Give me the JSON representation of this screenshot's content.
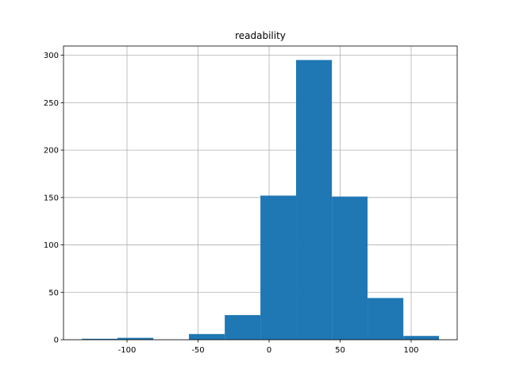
{
  "chart_data": {
    "type": "histogram",
    "title": "readability",
    "bins": [
      -131.8,
      -106.7,
      -81.5,
      -56.4,
      -31.2,
      -6.1,
      19.0,
      44.2,
      69.3,
      94.5,
      119.6
    ],
    "values": [
      1,
      2,
      0,
      6,
      26,
      152,
      295,
      151,
      44,
      4
    ],
    "color": "#1f77b4",
    "xlim": [
      -144.7,
      132.4
    ],
    "xticks": [
      -100,
      -50,
      0,
      50,
      100
    ],
    "ylim": [
      0,
      309.75
    ],
    "yticks": [
      0,
      50,
      100,
      150,
      200,
      250,
      300
    ],
    "grid": true
  }
}
